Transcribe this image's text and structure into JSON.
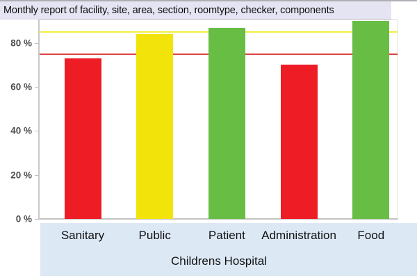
{
  "chart_data": {
    "type": "bar",
    "title": "Monthly report of facility, site, area, section, roomtype, checker, components",
    "xlabel": "Childrens Hospital",
    "ylabel": "",
    "ylim": [
      0,
      91
    ],
    "grid": false,
    "legend": "none",
    "yticks": [
      {
        "value": 80,
        "label": "80 %"
      },
      {
        "value": 60,
        "label": "60 %"
      },
      {
        "value": 40,
        "label": "40 %"
      },
      {
        "value": 20,
        "label": "20 %"
      },
      {
        "value": 0,
        "label": "0 %"
      }
    ],
    "categories": [
      "Sanitary",
      "Public",
      "Patient",
      "Administration",
      "Food"
    ],
    "values": [
      73,
      84,
      87,
      70,
      90
    ],
    "bar_color_names": [
      "red",
      "yellow",
      "green",
      "red",
      "green"
    ],
    "colors": {
      "red_bar": "#ee1c25",
      "yellow_bar": "#f2e30b",
      "green_bar": "#68bd45",
      "yellow_threshold_line": "#f4ee3e",
      "red_threshold_line": "#dd4040",
      "title_bar_bg": "#e4e4f3",
      "x_panel_bg": "#dde8f5"
    },
    "thresholds": [
      {
        "name": "upper-target",
        "value": 85,
        "color_key": "yellow_threshold_line"
      },
      {
        "name": "lower-target",
        "value": 75,
        "color_key": "red_threshold_line"
      }
    ]
  }
}
